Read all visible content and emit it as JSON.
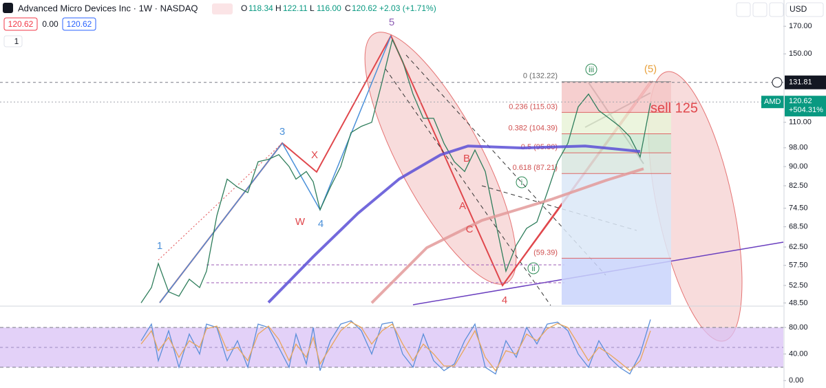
{
  "header": {
    "title": "Advanced Micro Devices Inc · 1W · NASDAQ",
    "o_label": "O",
    "open": "118.34",
    "h_label": "H",
    "high": "122.11",
    "l_label": "L",
    "low": "116.00",
    "c_label": "C",
    "close": "120.62",
    "change": "+2.03 (+1.71%)",
    "bid": "120.62",
    "spread": "0.00",
    "ask": "120.62",
    "lots": "1",
    "currency": "USD"
  },
  "chart_data": [
    {
      "type": "line",
      "log_scale": true,
      "xlim": [
        -41,
        186.6
      ],
      "ylim": [
        48.1,
        178.8
      ],
      "yticks": [
        {
          "value": 170,
          "label": "170.00"
        },
        {
          "value": 150,
          "label": "150.00"
        },
        {
          "value": 110,
          "label": "110.00"
        },
        {
          "value": 98,
          "label": "98.00"
        },
        {
          "value": 90,
          "label": "90.00"
        },
        {
          "value": 82.5,
          "label": "82.50"
        },
        {
          "value": 74.5,
          "label": "74.50"
        },
        {
          "value": 68.5,
          "label": "68.50"
        },
        {
          "value": 62.5,
          "label": "62.50"
        },
        {
          "value": 57.5,
          "label": "57.50"
        },
        {
          "value": 52.5,
          "label": "52.50"
        },
        {
          "value": 48.5,
          "label": "48.50"
        }
      ],
      "series": [
        {
          "color": "#2e7d5b",
          "x": [
            0,
            3,
            5,
            8,
            11,
            14,
            17,
            19,
            22,
            25,
            28,
            31,
            34,
            37,
            40,
            43,
            45,
            48,
            50,
            52,
            55,
            58,
            61,
            64,
            67,
            70,
            73,
            76,
            79,
            82,
            85,
            88,
            91,
            94,
            97,
            100,
            103,
            106,
            109,
            112,
            115,
            118,
            121,
            124,
            127,
            130,
            133,
            136,
            139,
            142,
            145,
            148
          ],
          "values": [
            48.5,
            52,
            58,
            51,
            50,
            54,
            52,
            56,
            72,
            85,
            82,
            80,
            92,
            93,
            95,
            90,
            85,
            88,
            84,
            74,
            82,
            90,
            105,
            108,
            110,
            132,
            160,
            145,
            125,
            112,
            112,
            100,
            92,
            88,
            97,
            88,
            70,
            56,
            63,
            68,
            70,
            80,
            92,
            100,
            118,
            125,
            116,
            112,
            108,
            103,
            94,
            120
          ]
        },
        {
          "color": "#5b4fd6",
          "x": [
            37,
            50,
            63,
            75,
            87,
            95,
            111,
            129,
            145
          ],
          "values": [
            48.6,
            59.8,
            72.8,
            85.1,
            94.9,
            98.8,
            97.9,
            98.8,
            96.4
          ]
        },
        {
          "color": "#e39a9a",
          "x": [
            67,
            83,
            99,
            119,
            135,
            146
          ],
          "values": [
            48.5,
            62.3,
            70.5,
            77.5,
            84.5,
            89.1
          ]
        }
      ],
      "crosshair": {
        "value": 131.81,
        "label": "131.81"
      },
      "last_price": {
        "symbol": "AMD",
        "value": 120.62,
        "label": "120.62",
        "change": "+504.31%"
      },
      "fib_levels": [
        {
          "value": 132.22,
          "label": "0 (132.22)",
          "color": "#f4c7c7"
        },
        {
          "value": 115.03,
          "label": "0.236 (115.03)",
          "color": "#e9f3d8"
        },
        {
          "value": 104.39,
          "label": "0.382 (104.39)",
          "color": "#cfe9d2"
        },
        {
          "value": 95.8,
          "label": "0.5 (95.80)",
          "color": "#d8e6df"
        },
        {
          "value": 87.21,
          "label": "0.618 (87.21)",
          "color": "#dbe8f7"
        },
        {
          "value": 59.39,
          "label": "(59.39)",
          "color": "#c9d4fb"
        }
      ],
      "wave_labels": [
        "1",
        "3",
        "X",
        "W",
        "4",
        "5",
        "B",
        "A",
        "C",
        "4",
        "iii",
        "ii",
        "i",
        "(5)",
        "sell 125"
      ]
    },
    {
      "type": "line",
      "ylim": [
        -7,
        110
      ],
      "band": [
        20,
        80
      ],
      "midline": 50,
      "yticks": [
        {
          "value": 80,
          "label": "80.00"
        },
        {
          "value": 40,
          "label": "40.00"
        },
        {
          "value": 0,
          "label": "0.00"
        }
      ],
      "series": [
        {
          "color": "#5b8fd9",
          "x": [
            0,
            3,
            5,
            8,
            11,
            14,
            17,
            19,
            22,
            25,
            28,
            31,
            34,
            37,
            40,
            43,
            45,
            48,
            50,
            52,
            55,
            58,
            61,
            64,
            67,
            70,
            73,
            76,
            79,
            82,
            85,
            88,
            91,
            94,
            97,
            100,
            103,
            106,
            109,
            112,
            115,
            118,
            121,
            124,
            127,
            130,
            133,
            136,
            139,
            142,
            145,
            148
          ],
          "values": [
            60,
            85,
            30,
            75,
            20,
            70,
            40,
            85,
            80,
            30,
            60,
            20,
            85,
            80,
            50,
            20,
            70,
            25,
            80,
            15,
            60,
            85,
            90,
            75,
            40,
            85,
            88,
            40,
            20,
            70,
            30,
            15,
            25,
            60,
            85,
            20,
            10,
            60,
            35,
            80,
            55,
            85,
            88,
            75,
            40,
            20,
            60,
            35,
            20,
            10,
            40,
            92
          ]
        },
        {
          "color": "#e8a65b",
          "x": [
            0,
            3,
            5,
            8,
            11,
            14,
            17,
            19,
            22,
            25,
            28,
            31,
            34,
            37,
            40,
            43,
            45,
            48,
            50,
            52,
            55,
            58,
            61,
            64,
            67,
            70,
            73,
            76,
            79,
            82,
            85,
            88,
            91,
            94,
            97,
            100,
            103,
            106,
            109,
            112,
            115,
            118,
            121,
            124,
            127,
            130,
            133,
            136,
            139,
            142,
            145,
            148
          ],
          "values": [
            55,
            75,
            45,
            65,
            35,
            60,
            50,
            78,
            82,
            45,
            50,
            30,
            70,
            82,
            62,
            30,
            55,
            35,
            65,
            25,
            50,
            75,
            88,
            80,
            55,
            75,
            85,
            55,
            30,
            55,
            40,
            22,
            22,
            48,
            75,
            35,
            15,
            45,
            40,
            70,
            60,
            78,
            86,
            80,
            55,
            30,
            50,
            40,
            28,
            15,
            30,
            75
          ]
        }
      ]
    }
  ]
}
